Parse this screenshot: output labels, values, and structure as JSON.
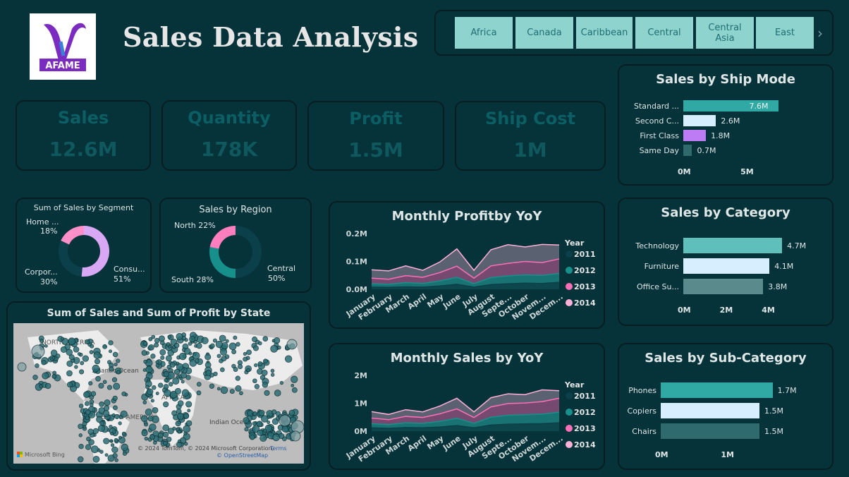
{
  "header": {
    "title": "Sales Data Analysis",
    "logo_text": "AFAME"
  },
  "slicer": {
    "items": [
      "Africa",
      "Canada",
      "Caribbean",
      "Central",
      "Central\nAsia",
      "East"
    ]
  },
  "kpis": [
    {
      "label": "Sales",
      "value": "12.6M"
    },
    {
      "label": "Quantity",
      "value": "178K"
    },
    {
      "label": "Profit",
      "value": "1.5M"
    },
    {
      "label": "Ship Cost",
      "value": "1M"
    }
  ],
  "segment": {
    "title": "Sum of Sales by Segment",
    "labels": {
      "home": "Home ...",
      "home_pct": "18%",
      "corp": "Corpor...",
      "corp_pct": "30%",
      "cons": "Consu...",
      "cons_pct": "51%"
    }
  },
  "region": {
    "title": "Sales by Region",
    "labels": {
      "north": "North 22%",
      "south": "South 28%",
      "central": "Central",
      "central_pct": "50%"
    }
  },
  "map": {
    "title": "Sum of Sales and Sum of Profit by State",
    "labels": {
      "na": "NORTH AMERICA",
      "atlantic": "Atlantic Ocean",
      "indian": "Indian Ocean",
      "sa": "SOUTH AMERICA",
      "africa": "AFRICA"
    },
    "credit": "© 2024 TomTom, © 2024 Microsoft Corporation,",
    "terms": "Terms",
    "osm": "© OpenStreetMap",
    "bing": "Microsoft Bing"
  },
  "colors": {
    "bg": "#06333a",
    "teal": "#30a9a5",
    "light": "#d7eefe",
    "purple": "#bd7cf4",
    "dark": "#2e6a6e",
    "tab": "#8fd3cf"
  },
  "chart_data": [
    {
      "type": "bar",
      "title": "Sales by Ship Mode",
      "categories": [
        "Standard ...",
        "Second C...",
        "First Class",
        "Same Day"
      ],
      "values": [
        7.6,
        2.6,
        1.8,
        0.7
      ],
      "value_labels": [
        "7.6M",
        "2.6M",
        "1.8M",
        "0.7M"
      ],
      "xticks": [
        "0M",
        "5M"
      ],
      "xlim": [
        0,
        9.2
      ],
      "colors": [
        "#30a9a5",
        "#d7eefe",
        "#bd7cf4",
        "#2e6a6e"
      ]
    },
    {
      "type": "bar",
      "title": "Sales by Category",
      "categories": [
        "Technology",
        "Furniture",
        "Office Su..."
      ],
      "values": [
        4.7,
        4.1,
        3.8
      ],
      "value_labels": [
        "4.7M",
        "4.1M",
        "3.8M"
      ],
      "xticks": [
        "0M",
        "2M",
        "4M"
      ],
      "xlim": [
        0,
        5.5
      ],
      "colors": [
        "#5fbfbb",
        "#d7eefe",
        "#5a8a8c"
      ]
    },
    {
      "type": "bar",
      "title": "Sales by Sub-Category",
      "categories": [
        "Phones",
        "Copiers",
        "Chairs"
      ],
      "values": [
        1.7,
        1.5,
        1.5
      ],
      "value_labels": [
        "1.7M",
        "1.5M",
        "1.5M"
      ],
      "xticks": [
        "0M",
        "1M"
      ],
      "xlim": [
        0,
        2.1
      ],
      "colors": [
        "#30a9a5",
        "#d7eefe",
        "#2e6a6e"
      ]
    },
    {
      "type": "pie",
      "title": "Sum of Sales by Segment",
      "categories": [
        "Consumer",
        "Corporate",
        "Home Office"
      ],
      "values": [
        51,
        30,
        18
      ],
      "colors": [
        "#d8a8f4",
        "#0b3f49",
        "#ff8fc8"
      ]
    },
    {
      "type": "pie",
      "title": "Sales by Region",
      "categories": [
        "Central",
        "South",
        "North"
      ],
      "values": [
        50,
        28,
        22
      ],
      "colors": [
        "#0b3f49",
        "#17908c",
        "#ff7ec0"
      ]
    },
    {
      "type": "area",
      "title": "Monthly Profitby YoY",
      "legend_title": "Year",
      "categories": [
        "January",
        "February",
        "March",
        "April",
        "May",
        "June",
        "July",
        "August",
        "Septe...",
        "October",
        "Novem...",
        "Decem..."
      ],
      "yticks": [
        "0.0M",
        "0.1M",
        "0.2M"
      ],
      "ylim": [
        0,
        0.2
      ],
      "series": [
        {
          "name": "2011",
          "values": [
            0.008,
            0.007,
            0.009,
            0.008,
            0.012,
            0.018,
            0.008,
            0.017,
            0.02,
            0.022,
            0.021,
            0.025
          ]
        },
        {
          "name": "2012",
          "values": [
            0.012,
            0.011,
            0.015,
            0.013,
            0.018,
            0.025,
            0.012,
            0.025,
            0.028,
            0.03,
            0.029,
            0.032
          ]
        },
        {
          "name": "2013",
          "values": [
            0.02,
            0.018,
            0.025,
            0.022,
            0.03,
            0.04,
            0.02,
            0.042,
            0.045,
            0.048,
            0.046,
            0.052
          ]
        },
        {
          "name": "2014",
          "values": [
            0.03,
            0.03,
            0.035,
            0.025,
            0.038,
            0.062,
            0.028,
            0.058,
            0.067,
            0.052,
            0.065,
            0.05
          ]
        }
      ],
      "colors": [
        "#0b3f49",
        "#17908c",
        "#ff70b8",
        "#ffb0d6"
      ]
    },
    {
      "type": "area",
      "title": "Monthly Sales by YoY",
      "legend_title": "Year",
      "categories": [
        "January",
        "February",
        "March",
        "April",
        "May",
        "June",
        "July",
        "August",
        "Septe...",
        "October",
        "Novem...",
        "Decem..."
      ],
      "yticks": [
        "0M",
        "1M",
        "2M"
      ],
      "ylim": [
        0,
        2
      ],
      "series": [
        {
          "name": "2011",
          "values": [
            0.12,
            0.1,
            0.13,
            0.12,
            0.15,
            0.2,
            0.12,
            0.22,
            0.25,
            0.26,
            0.27,
            0.3
          ]
        },
        {
          "name": "2012",
          "values": [
            0.15,
            0.13,
            0.17,
            0.16,
            0.2,
            0.26,
            0.16,
            0.28,
            0.32,
            0.33,
            0.34,
            0.38
          ]
        },
        {
          "name": "2013",
          "values": [
            0.2,
            0.18,
            0.23,
            0.21,
            0.27,
            0.34,
            0.21,
            0.37,
            0.42,
            0.42,
            0.45,
            0.5
          ]
        },
        {
          "name": "2014",
          "values": [
            0.23,
            0.19,
            0.24,
            0.2,
            0.28,
            0.38,
            0.2,
            0.33,
            0.35,
            0.3,
            0.42,
            0.27
          ]
        }
      ],
      "colors": [
        "#0b3f49",
        "#17908c",
        "#ff70b8",
        "#ffb0d6"
      ]
    }
  ]
}
